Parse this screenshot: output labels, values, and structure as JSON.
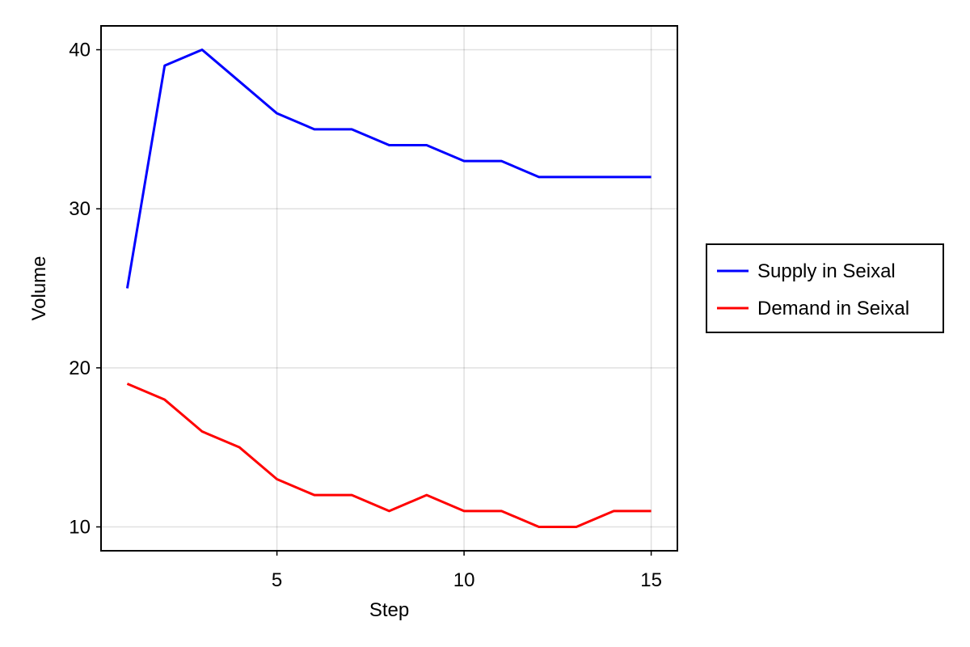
{
  "chart_data": {
    "type": "line",
    "title": "",
    "xlabel": "Step",
    "ylabel": "Volume",
    "xlim": [
      0.3,
      15.7
    ],
    "ylim": [
      8.5,
      41.5
    ],
    "xticks": [
      5,
      10,
      15
    ],
    "yticks": [
      10,
      20,
      30,
      40
    ],
    "grid": true,
    "legend_position": "right",
    "x": [
      1,
      2,
      3,
      4,
      5,
      6,
      7,
      8,
      9,
      10,
      11,
      12,
      13,
      14,
      15
    ],
    "series": [
      {
        "name": "Supply in Seixal",
        "color": "#0000ff",
        "values": [
          25,
          39,
          40,
          38,
          36,
          35,
          35,
          34,
          34,
          33,
          33,
          32,
          32,
          32,
          32
        ]
      },
      {
        "name": "Demand in Seixal",
        "color": "#ff0000",
        "values": [
          19,
          18,
          16,
          15,
          13,
          12,
          12,
          11,
          12,
          11,
          11,
          10,
          10,
          11,
          11
        ]
      }
    ]
  }
}
